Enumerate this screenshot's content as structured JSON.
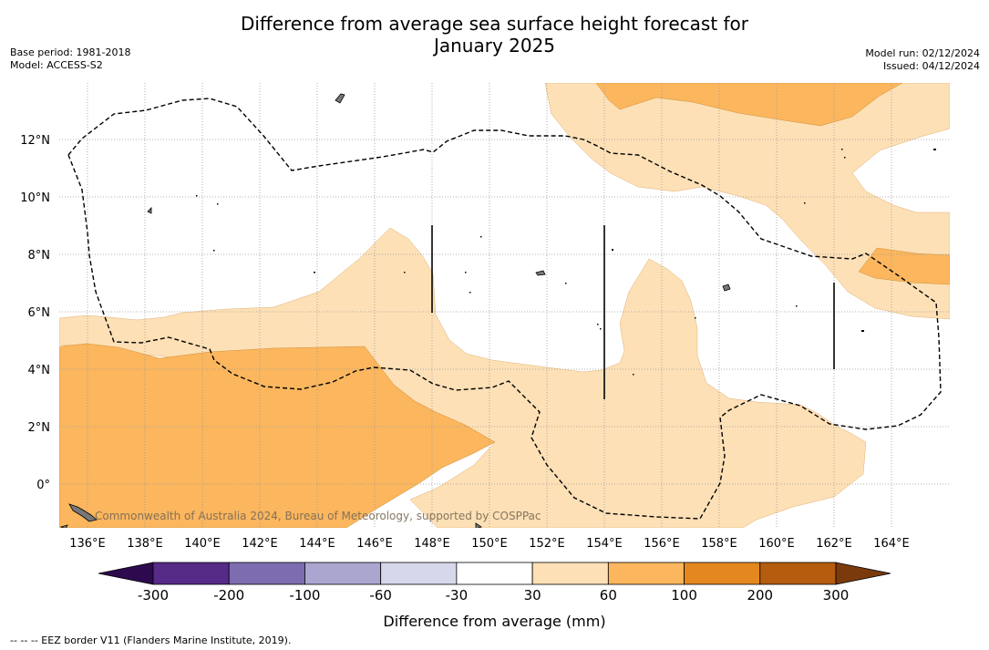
{
  "header": {
    "title_line1": "Difference from average sea surface height forecast for",
    "title_line2": "January 2025",
    "base_period": "Base period: 1981-2018",
    "model": "Model: ACCESS-S2",
    "model_run": "Model run: 02/12/2024",
    "issued": "Issued: 04/12/2024"
  },
  "map": {
    "lon_labels": [
      "136°E",
      "138°E",
      "140°E",
      "142°E",
      "144°E",
      "146°E",
      "148°E",
      "150°E",
      "152°E",
      "154°E",
      "156°E",
      "158°E",
      "160°E",
      "162°E",
      "164°E"
    ],
    "lat_labels": [
      "12°N",
      "10°N",
      "8°N",
      "6°N",
      "4°N",
      "2°N",
      "0°"
    ],
    "copyright": "Commonwealth of Australia 2024, Bureau of Meteorology, supported by COSPPac"
  },
  "colorbar": {
    "ticks": [
      "-300",
      "-200",
      "-100",
      "-60",
      "-30",
      "30",
      "60",
      "100",
      "200",
      "300"
    ],
    "colors": [
      "#2d0a4e",
      "#562a87",
      "#7d6db0",
      "#aba6d0",
      "#d6d7ea",
      "#ffffff",
      "#fde0b6",
      "#fbb65e",
      "#e4871f",
      "#b55c0f",
      "#7a3a0c"
    ],
    "label": "Difference from average (mm)"
  },
  "footnote": "--  --  -- EEZ border V11 (Flanders Marine Institute, 2019)."
}
